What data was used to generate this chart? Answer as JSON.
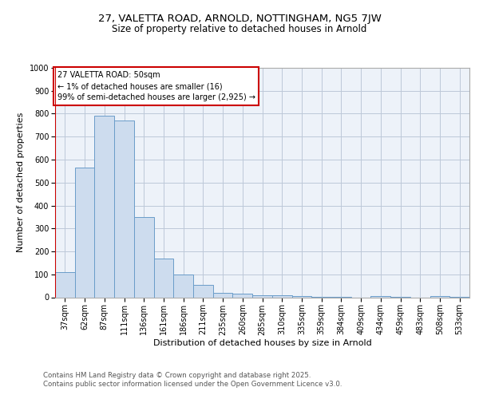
{
  "title_line1": "27, VALETTA ROAD, ARNOLD, NOTTINGHAM, NG5 7JW",
  "title_line2": "Size of property relative to detached houses in Arnold",
  "xlabel": "Distribution of detached houses by size in Arnold",
  "ylabel": "Number of detached properties",
  "bar_labels": [
    "37sqm",
    "62sqm",
    "87sqm",
    "111sqm",
    "136sqm",
    "161sqm",
    "186sqm",
    "211sqm",
    "235sqm",
    "260sqm",
    "285sqm",
    "310sqm",
    "335sqm",
    "359sqm",
    "384sqm",
    "409sqm",
    "434sqm",
    "459sqm",
    "483sqm",
    "508sqm",
    "533sqm"
  ],
  "bar_values": [
    110,
    565,
    790,
    770,
    350,
    170,
    100,
    55,
    18,
    14,
    10,
    7,
    6,
    3,
    1,
    0,
    5,
    1,
    0,
    5,
    1
  ],
  "bar_color": "#cddcee",
  "bar_edge_color": "#6a9cc9",
  "annotation_line1": "27 VALETTA ROAD: 50sqm",
  "annotation_line2": "← 1% of detached houses are smaller (16)",
  "annotation_line3": "99% of semi-detached houses are larger (2,925) →",
  "vline_color": "#cc0000",
  "annotation_box_edge": "#cc0000",
  "ylim": [
    0,
    1000
  ],
  "yticks": [
    0,
    100,
    200,
    300,
    400,
    500,
    600,
    700,
    800,
    900,
    1000
  ],
  "footer_line1": "Contains HM Land Registry data © Crown copyright and database right 2025.",
  "footer_line2": "Contains public sector information licensed under the Open Government Licence v3.0.",
  "bg_color": "#edf2f9",
  "grid_color": "#bdc8d8",
  "title_fontsize": 9.5,
  "subtitle_fontsize": 8.5,
  "axis_label_fontsize": 8,
  "tick_fontsize": 7,
  "annotation_fontsize": 7,
  "footer_fontsize": 6.2
}
